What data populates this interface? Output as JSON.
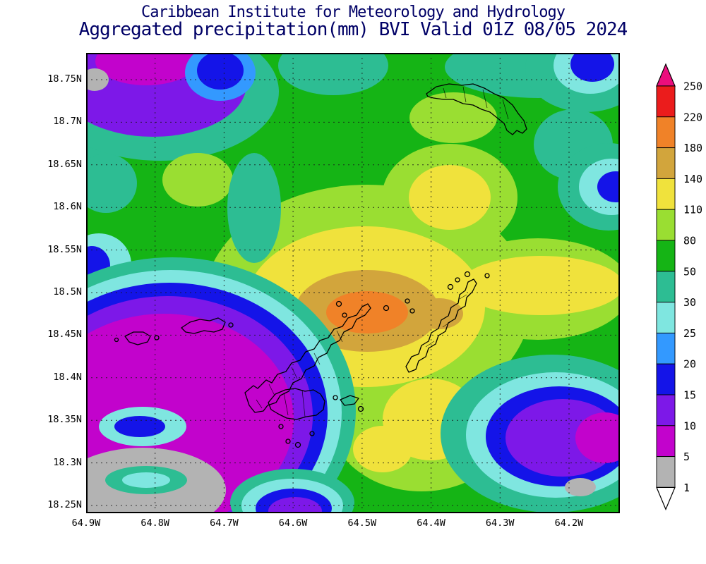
{
  "palette": {
    "title": "#000066",
    "axis_text": "#000000",
    "white": "#ffffff",
    "gray": "#b3b3b3",
    "magenta": "#c203cc",
    "purple": "#7d18e8",
    "blue": "#1414e8",
    "lightblue": "#3399ff",
    "cyan": "#7fe6e0",
    "teal": "#2dbd93",
    "green": "#15b415",
    "ygreen": "#9ade32",
    "yellow": "#f0e23c",
    "tan": "#d2a53c",
    "orange": "#f08228",
    "red": "#eb1c1c",
    "pink": "#eb0e7d"
  },
  "titles": {
    "line1": "Caribbean Institute for Meteorology and Hydrology",
    "line2": "Aggregated precipitation(mm) BVI Valid 01Z 08/05 2024"
  },
  "axes": {
    "y_ticks": [
      "18.75N",
      "18.7N",
      "18.65N",
      "18.6N",
      "18.55N",
      "18.5N",
      "18.45N",
      "18.4N",
      "18.35N",
      "18.3N",
      "18.25N"
    ],
    "x_ticks": [
      "64.9W",
      "64.8W",
      "64.7W",
      "64.6W",
      "64.5W",
      "64.4W",
      "64.3W",
      "64.2W"
    ]
  },
  "colorbar": {
    "labels": [
      "250",
      "220",
      "180",
      "140",
      "110",
      "80",
      "50",
      "30",
      "25",
      "20",
      "15",
      "10",
      "5",
      "1"
    ],
    "segments_top_to_bottom": [
      "red",
      "orange",
      "tan",
      "yellow",
      "ygreen",
      "green",
      "teal",
      "cyan",
      "lightblue",
      "blue",
      "purple",
      "magenta",
      "gray"
    ],
    "top_arrow_color": "pink",
    "bottom_arrow_color": "white"
  },
  "chart_data": {
    "type": "heatmap",
    "title": "Aggregated precipitation(mm) BVI Valid 01Z 08/05 2024",
    "source_line": "Caribbean Institute for Meteorology and Hydrology",
    "units": "mm",
    "lat_ticks": [
      18.25,
      18.3,
      18.35,
      18.4,
      18.45,
      18.5,
      18.55,
      18.6,
      18.65,
      18.7,
      18.75
    ],
    "lon_ticks_w": [
      64.9,
      64.8,
      64.7,
      64.6,
      64.5,
      64.4,
      64.3,
      64.2
    ],
    "contour_levels_mm": [
      1,
      5,
      10,
      15,
      20,
      25,
      30,
      50,
      80,
      110,
      140,
      180,
      220,
      250
    ],
    "level_colors_low_to_high": [
      "#ffffff",
      "#b3b3b3",
      "#c203cc",
      "#7d18e8",
      "#1414e8",
      "#3399ff",
      "#7fe6e0",
      "#2dbd93",
      "#15b415",
      "#9ade32",
      "#f0e23c",
      "#d2a53c",
      "#f08228",
      "#eb1c1c",
      "#eb0e7d"
    ],
    "field_summary": [
      "Maximum 180-220 mm orange core near 64.55W 18.48N between the island chains",
      "Broad 110-180 mm yellow/tan swath across central BVI extending to the east edge",
      "Sub-5 mm gray pockets in the southwest and northwest corners and far southeast",
      "5-15 mm magenta/purple lobe over the southwest quadrant and a secondary low near 64.3W 18.35N",
      "Purple/blue/teal ring pattern in the northwest corner; mostly 50-110 mm greens elsewhere"
    ],
    "grid": "dashed graticule every 0.05 deg latitude and 0.1 deg longitude",
    "legend_position": "right vertical colorbar with over/under arrows"
  }
}
